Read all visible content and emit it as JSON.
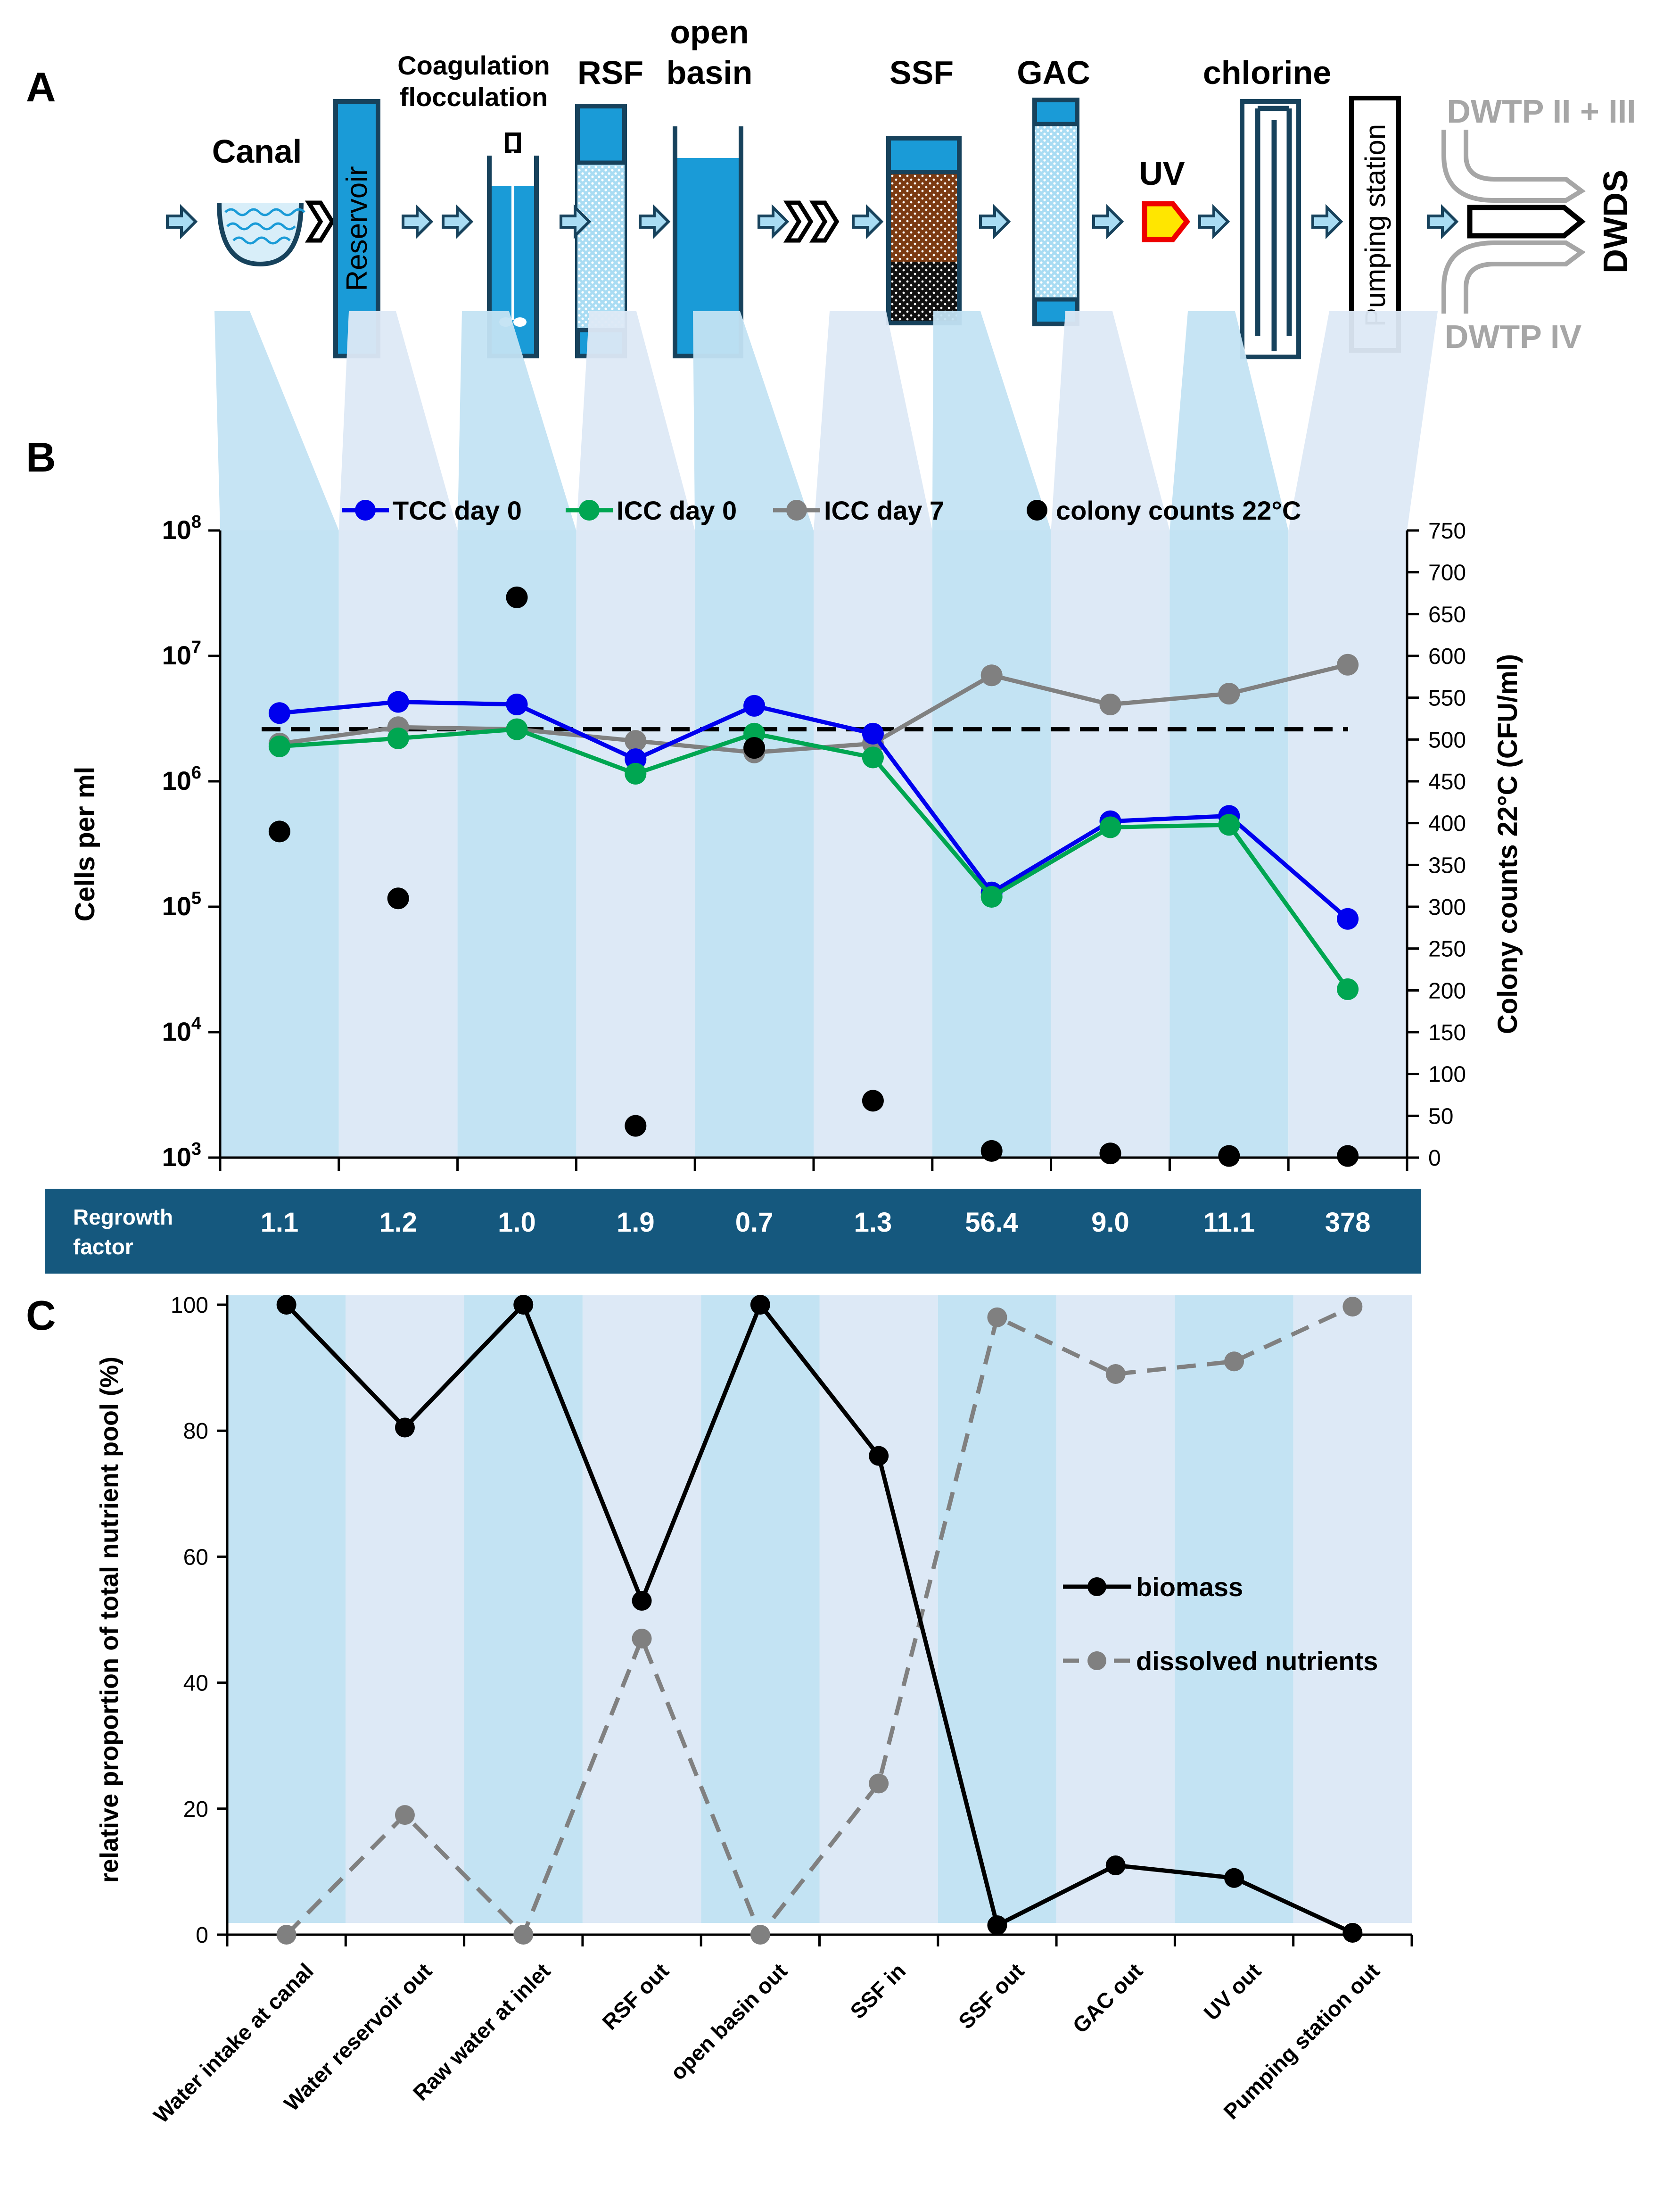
{
  "panel_labels": {
    "a": "A",
    "b": "B",
    "c": "C"
  },
  "process": {
    "canal": "Canal",
    "reservoir": "Reservoir",
    "coag_line1": "Coagulation",
    "coag_line2": "flocculation",
    "rsf": "RSF",
    "open_line1": "open",
    "open_line2": "basin",
    "ssf": "SSF",
    "gac": "GAC",
    "uv": "UV",
    "chlorine": "chlorine",
    "pumping": "Pumping station",
    "dwtp_top": "DWTP II + III",
    "dwtp_bottom": "DWTP IV",
    "dwds": "DWDS"
  },
  "colors": {
    "tcc": "#0000ee",
    "icc0": "#00a651",
    "icc7": "#808080",
    "colony": "#000000",
    "band_dark": "#c3e3f3",
    "band_light": "#dde9f6",
    "regrowth_bar": "#15587e",
    "water": "#1a9bd7",
    "outline": "#17425c"
  },
  "regrowth": {
    "label_line1": "Regrowth",
    "label_line2": "factor",
    "values": [
      "1.1",
      "1.2",
      "1.0",
      "1.9",
      "0.7",
      "1.3",
      "56.4",
      "9.0",
      "11.1",
      "378"
    ]
  },
  "chart_data": [
    {
      "type": "line",
      "title": "",
      "ylabel": "Cells  per ml",
      "y2label": "Colony counts 22°C (CFU/ml)",
      "yscale": "log",
      "ylim": [
        1000,
        100000000
      ],
      "y2lim": [
        0,
        750
      ],
      "yticks": [
        {
          "base": "10",
          "exp": "3"
        },
        {
          "base": "10",
          "exp": "4"
        },
        {
          "base": "10",
          "exp": "5"
        },
        {
          "base": "10",
          "exp": "6"
        },
        {
          "base": "10",
          "exp": "7"
        },
        {
          "base": "10",
          "exp": "8"
        }
      ],
      "y2ticks": [
        "0",
        "50",
        "100",
        "150",
        "200",
        "250",
        "300",
        "350",
        "400",
        "450",
        "500",
        "550",
        "600",
        "650",
        "700",
        "750"
      ],
      "categories": [
        "Water intake at canal",
        "Water reservoir out",
        "Raw water at inlet",
        "RSF out",
        "open basin out",
        "SSF in",
        "SSF out",
        "GAC out",
        "UV out",
        "Pumping station out"
      ],
      "reference_line": 2600000,
      "legend_position": "top",
      "series": [
        {
          "name": "TCC day 0",
          "axis": "left",
          "values": [
            3500000,
            4300000,
            4100000,
            1500000,
            4000000,
            2400000,
            130000,
            480000,
            530000,
            80000
          ]
        },
        {
          "name": "ICC day 0",
          "axis": "left",
          "values": [
            1900000,
            2200000,
            2600000,
            1150000,
            2400000,
            1550000,
            120000,
            430000,
            450000,
            22000
          ]
        },
        {
          "name": "ICC day 7",
          "axis": "left",
          "values": [
            2000000,
            2700000,
            2600000,
            2100000,
            1700000,
            2000000,
            7000000,
            4100000,
            5000000,
            8500000
          ]
        },
        {
          "name": "colony counts 22°C",
          "axis": "right",
          "style": "markers",
          "values": [
            390,
            310,
            670,
            38,
            490,
            68,
            8,
            5,
            2,
            2
          ]
        }
      ]
    },
    {
      "type": "line",
      "title": "",
      "ylabel": "relative proportion of total nutrient pool (%)",
      "ylim": [
        0,
        100
      ],
      "yticks": [
        "0",
        "20",
        "40",
        "60",
        "80",
        "100"
      ],
      "categories": [
        "Water intake at canal",
        "Water reservoir out",
        "Raw water at inlet",
        "RSF out",
        "open basin out",
        "SSF in",
        "SSF out",
        "GAC out",
        "UV out",
        "Pumping station out"
      ],
      "legend_position": "right",
      "series": [
        {
          "name": "biomass",
          "style": "solid",
          "values": [
            100,
            80.5,
            100,
            53,
            100,
            76,
            1.5,
            11,
            9,
            0.3
          ]
        },
        {
          "name": "dissolved nutrients",
          "style": "dashed",
          "values": [
            0,
            19,
            0,
            47,
            0,
            24,
            98,
            89,
            91,
            99.7
          ]
        }
      ]
    }
  ]
}
